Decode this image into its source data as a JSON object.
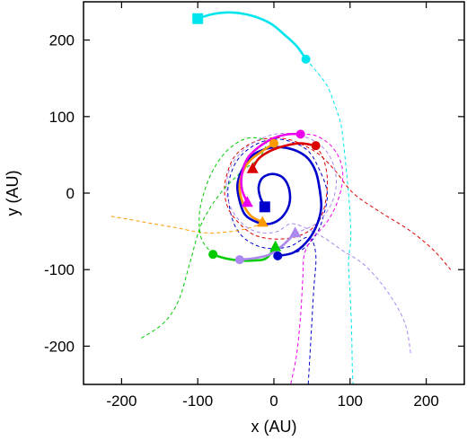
{
  "chart_data": {
    "type": "line",
    "xlabel": "x (AU)",
    "ylabel": "y (AU)",
    "xlim": [
      -250,
      250
    ],
    "ylim": [
      -250,
      250
    ],
    "x_ticks": [
      -200,
      -100,
      0,
      100,
      200
    ],
    "y_ticks": [
      -200,
      -100,
      0,
      100,
      200
    ],
    "x_tick_labels": [
      "-200",
      "-100",
      "0",
      "100",
      "200"
    ],
    "y_tick_labels": [
      "-200",
      "-100",
      "0",
      "100",
      "200"
    ],
    "grid": false,
    "legend": "none",
    "series": [
      {
        "color": "#00e5ee",
        "dashed_points": [
          [
            42,
            175
          ],
          [
            55,
            160
          ],
          [
            70,
            140
          ],
          [
            80,
            115
          ],
          [
            88,
            90
          ],
          [
            92,
            60
          ],
          [
            95,
            30
          ],
          [
            98,
            0
          ],
          [
            100,
            -30
          ],
          [
            101,
            -60
          ],
          [
            98,
            -90
          ],
          [
            100,
            -130
          ],
          [
            102,
            -180
          ],
          [
            103,
            -230
          ],
          [
            104,
            -250
          ]
        ],
        "solid_points": [
          [
            -100,
            228
          ],
          [
            -80,
            234
          ],
          [
            -55,
            236
          ],
          [
            -30,
            232
          ],
          [
            -5,
            222
          ],
          [
            15,
            206
          ],
          [
            30,
            192
          ],
          [
            42,
            175
          ]
        ],
        "start_marker": {
          "shape": "square",
          "x": -100,
          "y": 228
        },
        "end_marker": {
          "shape": "circle",
          "x": 42,
          "y": 175
        }
      },
      {
        "color": "#0000cc",
        "dashed_points": [
          [
            5,
            -82
          ],
          [
            35,
            -75
          ],
          [
            55,
            -55
          ],
          [
            65,
            -30
          ],
          [
            70,
            0
          ],
          [
            60,
            30
          ],
          [
            45,
            55
          ],
          [
            20,
            68
          ],
          [
            -5,
            70
          ],
          [
            -30,
            60
          ],
          [
            -50,
            40
          ],
          [
            -60,
            10
          ],
          [
            -58,
            -20
          ],
          [
            -50,
            -45
          ],
          [
            -35,
            -62
          ],
          [
            -10,
            -72
          ],
          [
            20,
            -70
          ],
          [
            45,
            -58
          ],
          [
            55,
            -80
          ],
          [
            52,
            -130
          ],
          [
            48,
            -200
          ],
          [
            45,
            -250
          ]
        ],
        "solid_points": [
          [
            5,
            -82
          ],
          [
            25,
            -78
          ],
          [
            42,
            -65
          ],
          [
            55,
            -45
          ],
          [
            62,
            -20
          ],
          [
            60,
            5
          ],
          [
            55,
            28
          ],
          [
            45,
            45
          ],
          [
            30,
            55
          ],
          [
            10,
            60
          ],
          [
            -10,
            58
          ],
          [
            -30,
            48
          ],
          [
            -42,
            30
          ],
          [
            -48,
            10
          ],
          [
            -45,
            -10
          ],
          [
            -38,
            -28
          ],
          [
            -22,
            -38
          ],
          [
            -5,
            -40
          ],
          [
            10,
            -32
          ],
          [
            20,
            -15
          ],
          [
            20,
            5
          ],
          [
            12,
            20
          ],
          [
            -2,
            25
          ],
          [
            -15,
            20
          ],
          [
            -20,
            8
          ],
          [
            -18,
            -5
          ],
          [
            -12,
            -18
          ]
        ],
        "start_marker": {
          "shape": "square",
          "x": -12,
          "y": -18
        },
        "end_marker": {
          "shape": "circle",
          "x": 5,
          "y": -82
        }
      },
      {
        "color": "#dd0000",
        "dashed_points": [
          [
            55,
            62
          ],
          [
            65,
            45
          ],
          [
            70,
            20
          ],
          [
            68,
            -10
          ],
          [
            60,
            -35
          ],
          [
            45,
            -50
          ],
          [
            25,
            -58
          ],
          [
            0,
            -60
          ],
          [
            -25,
            -55
          ],
          [
            -45,
            -40
          ],
          [
            -60,
            -20
          ],
          [
            -65,
            5
          ],
          [
            -60,
            30
          ],
          [
            -50,
            50
          ],
          [
            -30,
            65
          ],
          [
            -5,
            72
          ],
          [
            20,
            70
          ],
          [
            40,
            62
          ],
          [
            60,
            50
          ],
          [
            80,
            30
          ],
          [
            95,
            10
          ],
          [
            110,
            -5
          ],
          [
            140,
            -25
          ],
          [
            180,
            -50
          ],
          [
            210,
            -75
          ],
          [
            232,
            -100
          ]
        ],
        "solid_points": [
          [
            -28,
            32
          ],
          [
            -20,
            45
          ],
          [
            -5,
            55
          ],
          [
            15,
            62
          ],
          [
            35,
            65
          ],
          [
            55,
            62
          ]
        ],
        "start_marker": {
          "shape": "triangle",
          "x": -28,
          "y": 32
        },
        "end_marker": {
          "shape": "circle",
          "x": 55,
          "y": 62
        }
      },
      {
        "color": "#ff9900",
        "dashed_points": [
          [
            -15,
            -38
          ],
          [
            -30,
            -45
          ],
          [
            -55,
            -50
          ],
          [
            -90,
            -52
          ],
          [
            -130,
            -45
          ],
          [
            -170,
            -38
          ],
          [
            -215,
            -30
          ]
        ],
        "solid_points": [
          [
            -15,
            -38
          ],
          [
            -30,
            -30
          ],
          [
            -40,
            -15
          ],
          [
            -45,
            5
          ],
          [
            -42,
            25
          ],
          [
            -32,
            42
          ],
          [
            -15,
            55
          ],
          [
            0,
            65
          ]
        ],
        "start_marker": {
          "shape": "triangle",
          "x": -15,
          "y": -38
        },
        "end_marker": {
          "shape": "circle",
          "x": 0,
          "y": 65
        }
      },
      {
        "color": "#ee00ee",
        "dashed_points": [
          [
            35,
            77
          ],
          [
            55,
            75
          ],
          [
            75,
            62
          ],
          [
            88,
            40
          ],
          [
            90,
            15
          ],
          [
            82,
            -15
          ],
          [
            68,
            -40
          ],
          [
            50,
            -60
          ],
          [
            40,
            -80
          ],
          [
            38,
            -110
          ],
          [
            35,
            -160
          ],
          [
            30,
            -210
          ],
          [
            22,
            -250
          ]
        ],
        "solid_points": [
          [
            -35,
            -12
          ],
          [
            -42,
            5
          ],
          [
            -42,
            25
          ],
          [
            -35,
            45
          ],
          [
            -20,
            60
          ],
          [
            0,
            72
          ],
          [
            20,
            77
          ],
          [
            35,
            77
          ]
        ],
        "start_marker": {
          "shape": "triangle",
          "x": -35,
          "y": -12
        },
        "end_marker": {
          "shape": "circle",
          "x": 35,
          "y": 77
        }
      },
      {
        "color": "#00cc00",
        "dashed_points": [
          [
            -80,
            -80
          ],
          [
            -95,
            -60
          ],
          [
            -98,
            -30
          ],
          [
            -92,
            0
          ],
          [
            -80,
            30
          ],
          [
            -62,
            55
          ],
          [
            -40,
            70
          ],
          [
            -20,
            72
          ],
          [
            -10,
            65
          ],
          [
            -20,
            45
          ],
          [
            -40,
            30
          ],
          [
            -70,
            0
          ],
          [
            -95,
            -40
          ],
          [
            -110,
            -90
          ],
          [
            -125,
            -140
          ],
          [
            -145,
            -170
          ],
          [
            -175,
            -190
          ]
        ],
        "solid_points": [
          [
            -80,
            -80
          ],
          [
            -65,
            -85
          ],
          [
            -45,
            -88
          ],
          [
            -25,
            -88
          ],
          [
            -10,
            -85
          ],
          [
            2,
            -70
          ]
        ],
        "start_marker": {
          "shape": "circle",
          "x": -80,
          "y": -80
        },
        "end_marker": {
          "shape": "triangle",
          "x": 2,
          "y": -70
        }
      },
      {
        "color": "#aa88ee",
        "dashed_points": [
          [
            28,
            -52
          ],
          [
            55,
            -40
          ],
          [
            75,
            -15
          ],
          [
            82,
            15
          ],
          [
            75,
            45
          ],
          [
            58,
            65
          ],
          [
            35,
            75
          ],
          [
            10,
            78
          ],
          [
            -15,
            72
          ],
          [
            -38,
            58
          ],
          [
            -55,
            38
          ],
          [
            -62,
            15
          ],
          [
            -60,
            -10
          ],
          [
            -50,
            -30
          ],
          [
            -35,
            -45
          ],
          [
            -15,
            -52
          ],
          [
            5,
            -50
          ],
          [
            25,
            -40
          ],
          [
            60,
            -55
          ],
          [
            90,
            -75
          ],
          [
            120,
            -95
          ],
          [
            150,
            -130
          ],
          [
            172,
            -170
          ],
          [
            180,
            -212
          ]
        ],
        "solid_points": [
          [
            -45,
            -87
          ],
          [
            -25,
            -85
          ],
          [
            -5,
            -80
          ],
          [
            12,
            -68
          ],
          [
            28,
            -52
          ]
        ],
        "start_marker": {
          "shape": "circle",
          "x": -45,
          "y": -87
        },
        "end_marker": {
          "shape": "triangle",
          "x": 28,
          "y": -52
        }
      }
    ]
  }
}
